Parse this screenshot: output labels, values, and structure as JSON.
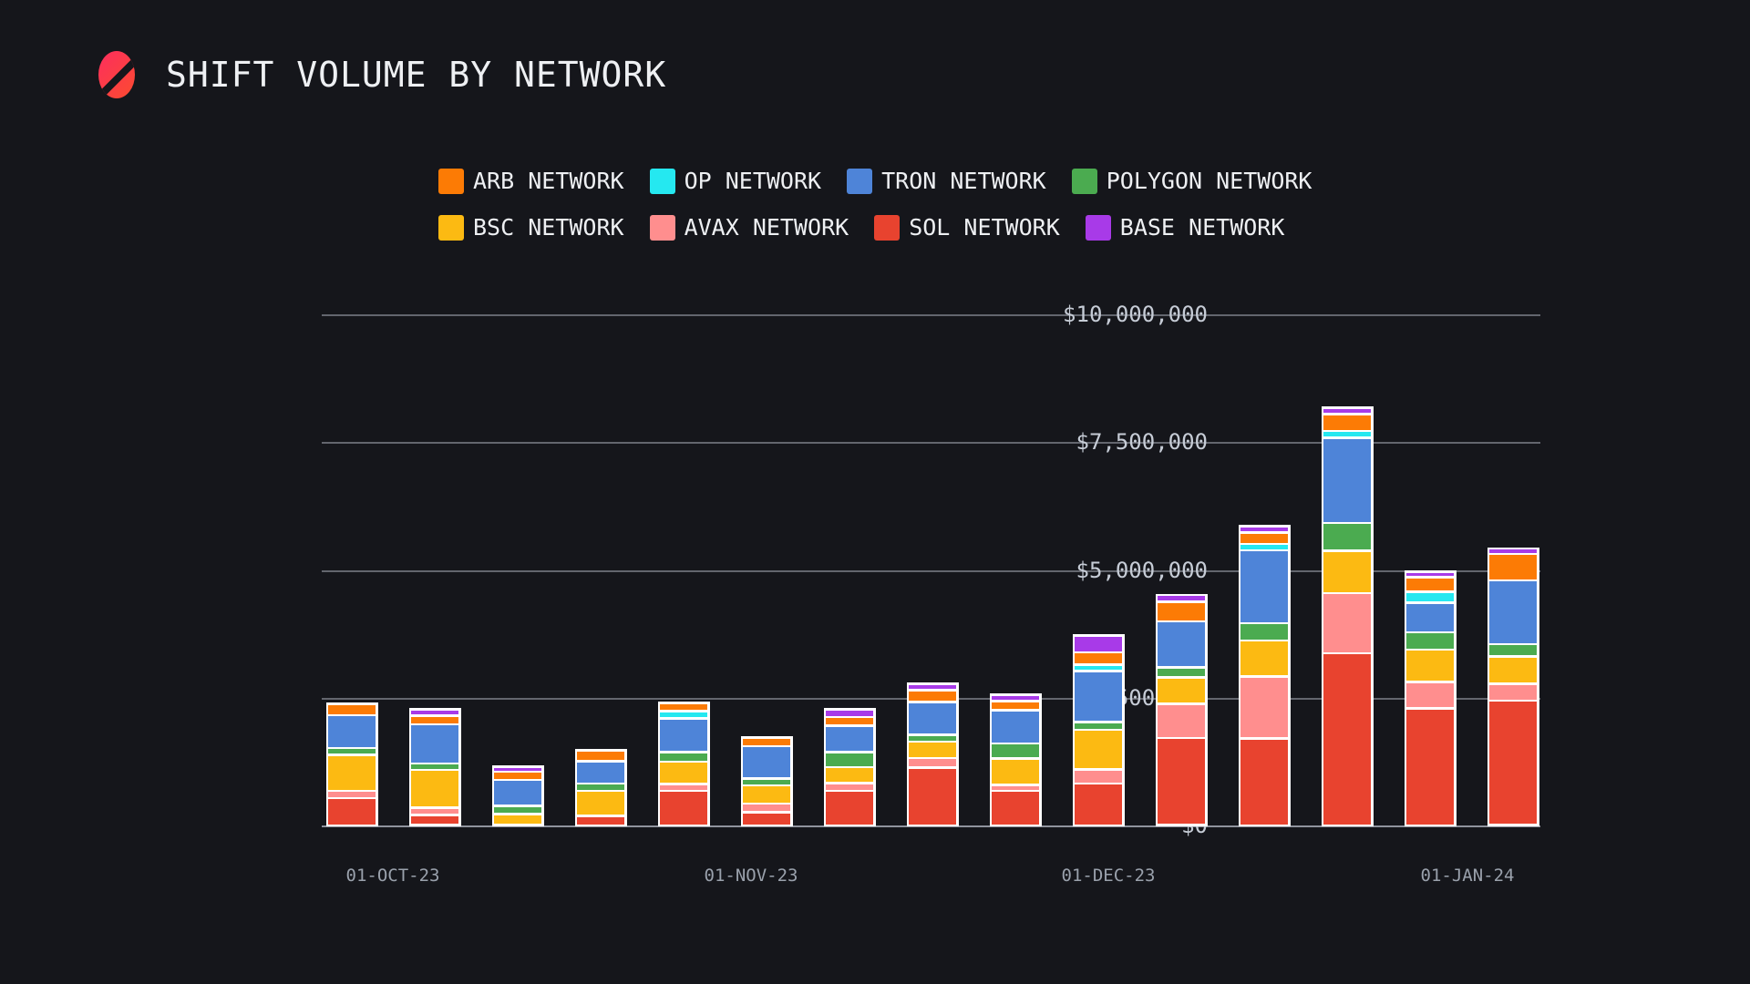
{
  "chart_data": {
    "type": "bar",
    "stacked": true,
    "title": "SHIFT VOLUME BY NETWORK",
    "ylabel": "",
    "xlabel": "",
    "ylim": [
      0,
      10700000
    ],
    "grid": "horizontal",
    "legend_position": "top-center",
    "y_ticks": [
      {
        "label": "$10,000,000",
        "value": 10000000
      },
      {
        "label": "$7,500,000",
        "value": 7500000
      },
      {
        "label": "$5,000,000",
        "value": 5000000
      },
      {
        "label": "$2,500,000",
        "value": 2500000
      },
      {
        "label": "$0",
        "value": 0
      }
    ],
    "x_tick_labels": [
      "01-OCT-23",
      "01-NOV-23",
      "01-DEC-23",
      "01-JAN-24"
    ],
    "n_bars": 15,
    "series_note": "series listed bottom-to-top of stack; values are USD per weekly bar",
    "series": [
      {
        "name": "SOL NETWORK",
        "color": "#e8432f",
        "values": [
          555000,
          180000,
          0,
          170000,
          740000,
          260000,
          740000,
          1240000,
          725000,
          865000,
          1805000,
          1775000,
          3490000,
          2440000,
          2565000
        ]
      },
      {
        "name": "AVAX NETWORK",
        "color": "#ff8e8e",
        "values": [
          115000,
          125000,
          0,
          0,
          105000,
          145000,
          135000,
          160000,
          90000,
          260000,
          680000,
          1250000,
          1190000,
          510000,
          305000
        ]
      },
      {
        "name": "BSC NETWORK",
        "color": "#fcba12",
        "values": [
          760000,
          820000,
          225000,
          535000,
          455000,
          385000,
          315000,
          320000,
          545000,
          815000,
          510000,
          715000,
          830000,
          645000,
          520000
        ]
      },
      {
        "name": "POLYGON NETWORK",
        "color": "#4bab50",
        "values": [
          105000,
          90000,
          145000,
          125000,
          170000,
          100000,
          295000,
          105000,
          285000,
          125000,
          160000,
          315000,
          520000,
          315000,
          215000
        ]
      },
      {
        "name": "TRON NETWORK",
        "color": "#4e84d8",
        "values": [
          680000,
          855000,
          605000,
          480000,
          715000,
          715000,
          555000,
          680000,
          705000,
          1065000,
          930000,
          1475000,
          1705000,
          580000,
          1285000
        ]
      },
      {
        "name": "OP NETWORK",
        "color": "#25e8f0",
        "values": [
          0,
          0,
          0,
          0,
          115000,
          0,
          0,
          0,
          0,
          90000,
          0,
          90000,
          100000,
          190000,
          0
        ]
      },
      {
        "name": "ARB NETWORK",
        "color": "#fc7b05",
        "values": [
          205000,
          150000,
          145000,
          200000,
          140000,
          155000,
          150000,
          215000,
          160000,
          220000,
          375000,
          195000,
          300000,
          260000,
          500000
        ]
      },
      {
        "name": "BASE NETWORK",
        "color": "#a83ae8",
        "values": [
          0,
          90000,
          70000,
          0,
          0,
          0,
          120000,
          90000,
          90000,
          320000,
          90000,
          85000,
          85000,
          70000,
          70000
        ]
      }
    ],
    "legend_rows": [
      [
        "ARB NETWORK",
        "OP NETWORK",
        "TRON NETWORK",
        "POLYGON NETWORK"
      ],
      [
        "BSC NETWORK",
        "AVAX NETWORK",
        "SOL NETWORK",
        "BASE NETWORK"
      ]
    ],
    "colors": {
      "background": "#15161b",
      "gridline": "#63666e",
      "baseline": "#8f939d",
      "y_tick_text": "#c6ccd6",
      "x_tick_text": "#9aa1ac",
      "title_text": "#eef0f3",
      "bar_outline": "#ffffff",
      "logo_gradient_start": "#fd2e5e",
      "logo_gradient_end": "#fb4b2f"
    }
  }
}
